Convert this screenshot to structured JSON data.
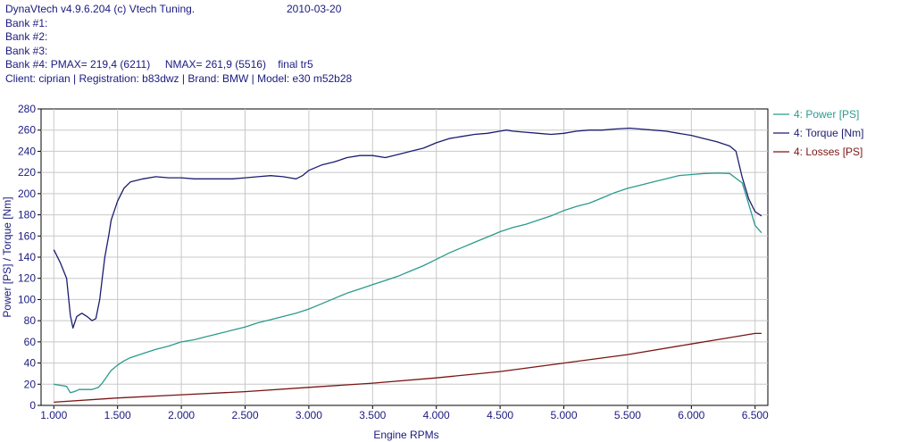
{
  "header": {
    "app": "DynaVtech v4.9.6.204 (c) Vtech Tuning.",
    "date": "2010-03-20",
    "bank1": "Bank #1:",
    "bank2": "Bank #2:",
    "bank3": "Bank #3:",
    "bank4": "Bank #4: PMAX= 219,4 (6211)     NMAX= 261,9 (5516)    final tr5",
    "client": "Client: ciprian | Registration: b83dwz | Brand: BMW | Model: e30 m52b28"
  },
  "chart_data": {
    "type": "line",
    "xlabel": "Engine RPMs",
    "ylabel": "Power [PS] / Torque [Nm]",
    "xlim": [
      900,
      6600
    ],
    "ylim": [
      0,
      280
    ],
    "grid": true,
    "legend_position": "top-right",
    "x_ticks": [
      1000,
      1500,
      2000,
      2500,
      3000,
      3500,
      4000,
      4500,
      5000,
      5500,
      6000,
      6500
    ],
    "x_tick_labels": [
      "1.000",
      "1.500",
      "2.000",
      "2.500",
      "3.000",
      "3.500",
      "4.000",
      "4.500",
      "5.000",
      "5.500",
      "6.000",
      "6.500"
    ],
    "y_ticks": [
      0,
      20,
      40,
      60,
      80,
      100,
      120,
      140,
      160,
      180,
      200,
      220,
      240,
      260,
      280
    ],
    "y_tick_labels": [
      "0",
      "20",
      "40",
      "60",
      "80",
      "100",
      "120",
      "140",
      "160",
      "180",
      "200",
      "220",
      "240",
      "260",
      "280"
    ],
    "series": [
      {
        "name": "4: Power [PS]",
        "color": "#2b9a8e",
        "x": [
          1000,
          1050,
          1100,
          1130,
          1160,
          1200,
          1250,
          1300,
          1350,
          1380,
          1420,
          1450,
          1500,
          1550,
          1600,
          1700,
          1800,
          1900,
          2000,
          2100,
          2200,
          2300,
          2400,
          2500,
          2600,
          2700,
          2800,
          2900,
          3000,
          3100,
          3200,
          3300,
          3400,
          3500,
          3600,
          3700,
          3800,
          3900,
          4000,
          4100,
          4200,
          4300,
          4400,
          4500,
          4600,
          4700,
          4800,
          4900,
          5000,
          5100,
          5200,
          5300,
          5400,
          5500,
          5600,
          5700,
          5800,
          5900,
          6000,
          6100,
          6211,
          6300,
          6400,
          6450,
          6500,
          6550
        ],
        "values": [
          20,
          19,
          18,
          12,
          13,
          15,
          15,
          15,
          17,
          21,
          28,
          33,
          38,
          42,
          45,
          49,
          53,
          56,
          60,
          62,
          65,
          68,
          71,
          74,
          78,
          81,
          84,
          87,
          91,
          96,
          101,
          106,
          110,
          114,
          118,
          122,
          127,
          132,
          138,
          144,
          149,
          154,
          159,
          164,
          168,
          171,
          175,
          179,
          184,
          188,
          191,
          196,
          201,
          205,
          208,
          211,
          214,
          217,
          218,
          219,
          219.4,
          219,
          210,
          190,
          170,
          163
        ]
      },
      {
        "name": "4: Torque [Nm]",
        "color": "#1c1c70",
        "x": [
          1000,
          1050,
          1100,
          1130,
          1150,
          1180,
          1220,
          1260,
          1300,
          1330,
          1360,
          1380,
          1400,
          1430,
          1450,
          1500,
          1550,
          1600,
          1700,
          1800,
          1900,
          2000,
          2100,
          2200,
          2300,
          2400,
          2500,
          2600,
          2700,
          2800,
          2850,
          2900,
          2950,
          3000,
          3100,
          3200,
          3300,
          3400,
          3500,
          3600,
          3700,
          3800,
          3900,
          4000,
          4100,
          4200,
          4300,
          4400,
          4500,
          4550,
          4600,
          4700,
          4800,
          4900,
          5000,
          5100,
          5200,
          5300,
          5400,
          5516,
          5600,
          5700,
          5800,
          5900,
          6000,
          6100,
          6200,
          6300,
          6350,
          6400,
          6450,
          6500,
          6550
        ],
        "values": [
          147,
          135,
          120,
          85,
          73,
          84,
          87,
          84,
          80,
          82,
          100,
          120,
          140,
          160,
          175,
          193,
          205,
          211,
          214,
          216,
          215,
          215,
          214,
          214,
          214,
          214,
          215,
          216,
          217,
          216,
          215,
          214,
          217,
          222,
          227,
          230,
          234,
          236,
          236,
          234,
          237,
          240,
          243,
          248,
          252,
          254,
          256,
          257,
          259,
          260,
          259,
          258,
          257,
          256,
          257,
          259,
          260,
          260,
          261,
          261.9,
          261,
          260,
          259,
          257,
          255,
          252,
          249,
          245,
          240,
          215,
          195,
          183,
          179
        ]
      },
      {
        "name": "4: Losses [PS]",
        "color": "#7a1414",
        "x": [
          1000,
          1500,
          2000,
          2500,
          3000,
          3500,
          4000,
          4500,
          5000,
          5500,
          6000,
          6300,
          6500,
          6550
        ],
        "values": [
          3,
          7,
          10,
          13,
          17,
          21,
          26,
          32,
          40,
          48,
          58,
          64,
          68,
          68
        ]
      }
    ]
  }
}
